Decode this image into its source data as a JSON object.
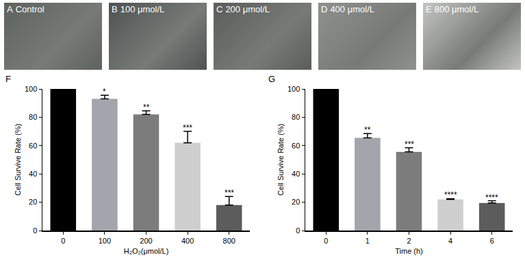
{
  "images": [
    {
      "letter": "A",
      "label": "Control"
    },
    {
      "letter": "B",
      "label": "100 μmol/L"
    },
    {
      "letter": "C",
      "label": "200 μmol/L"
    },
    {
      "letter": "D",
      "label": "400 μmol/L"
    },
    {
      "letter": "E",
      "label": "800 μmol/L"
    }
  ],
  "chart_data": [
    {
      "letter": "F",
      "type": "bar",
      "x_label": "H₂O₂(μmol/L)",
      "y_label": "Cell Survive Rate (%)",
      "categories": [
        "0",
        "100",
        "200",
        "400",
        "800"
      ],
      "values": [
        100,
        93,
        82,
        62,
        18
      ],
      "errors": [
        0,
        2.5,
        2.5,
        8,
        6
      ],
      "significance": [
        null,
        "*",
        "**",
        "***",
        "***"
      ],
      "colors": [
        "#000000",
        "#a4a4ac",
        "#7c7c7c",
        "#cfcfcf",
        "#5c5c5c"
      ],
      "ylim": [
        0,
        100
      ],
      "yticks": [
        0,
        20,
        40,
        60,
        80,
        100
      ],
      "grid": false
    },
    {
      "letter": "G",
      "type": "bar",
      "x_label": "Time (h)",
      "y_label": "Cell Survive Rate (%)",
      "categories": [
        "0",
        "1",
        "2",
        "4",
        "6"
      ],
      "values": [
        100,
        65.5,
        55.5,
        22,
        19.5
      ],
      "errors": [
        0,
        3,
        3,
        0.5,
        1.5
      ],
      "significance": [
        null,
        "**",
        "***",
        "****",
        "****"
      ],
      "colors": [
        "#000000",
        "#a4a4ac",
        "#7c7c7c",
        "#cfcfcf",
        "#5c5c5c"
      ],
      "ylim": [
        0,
        100
      ],
      "yticks": [
        0,
        20,
        40,
        60,
        80,
        100
      ],
      "grid": false
    }
  ]
}
